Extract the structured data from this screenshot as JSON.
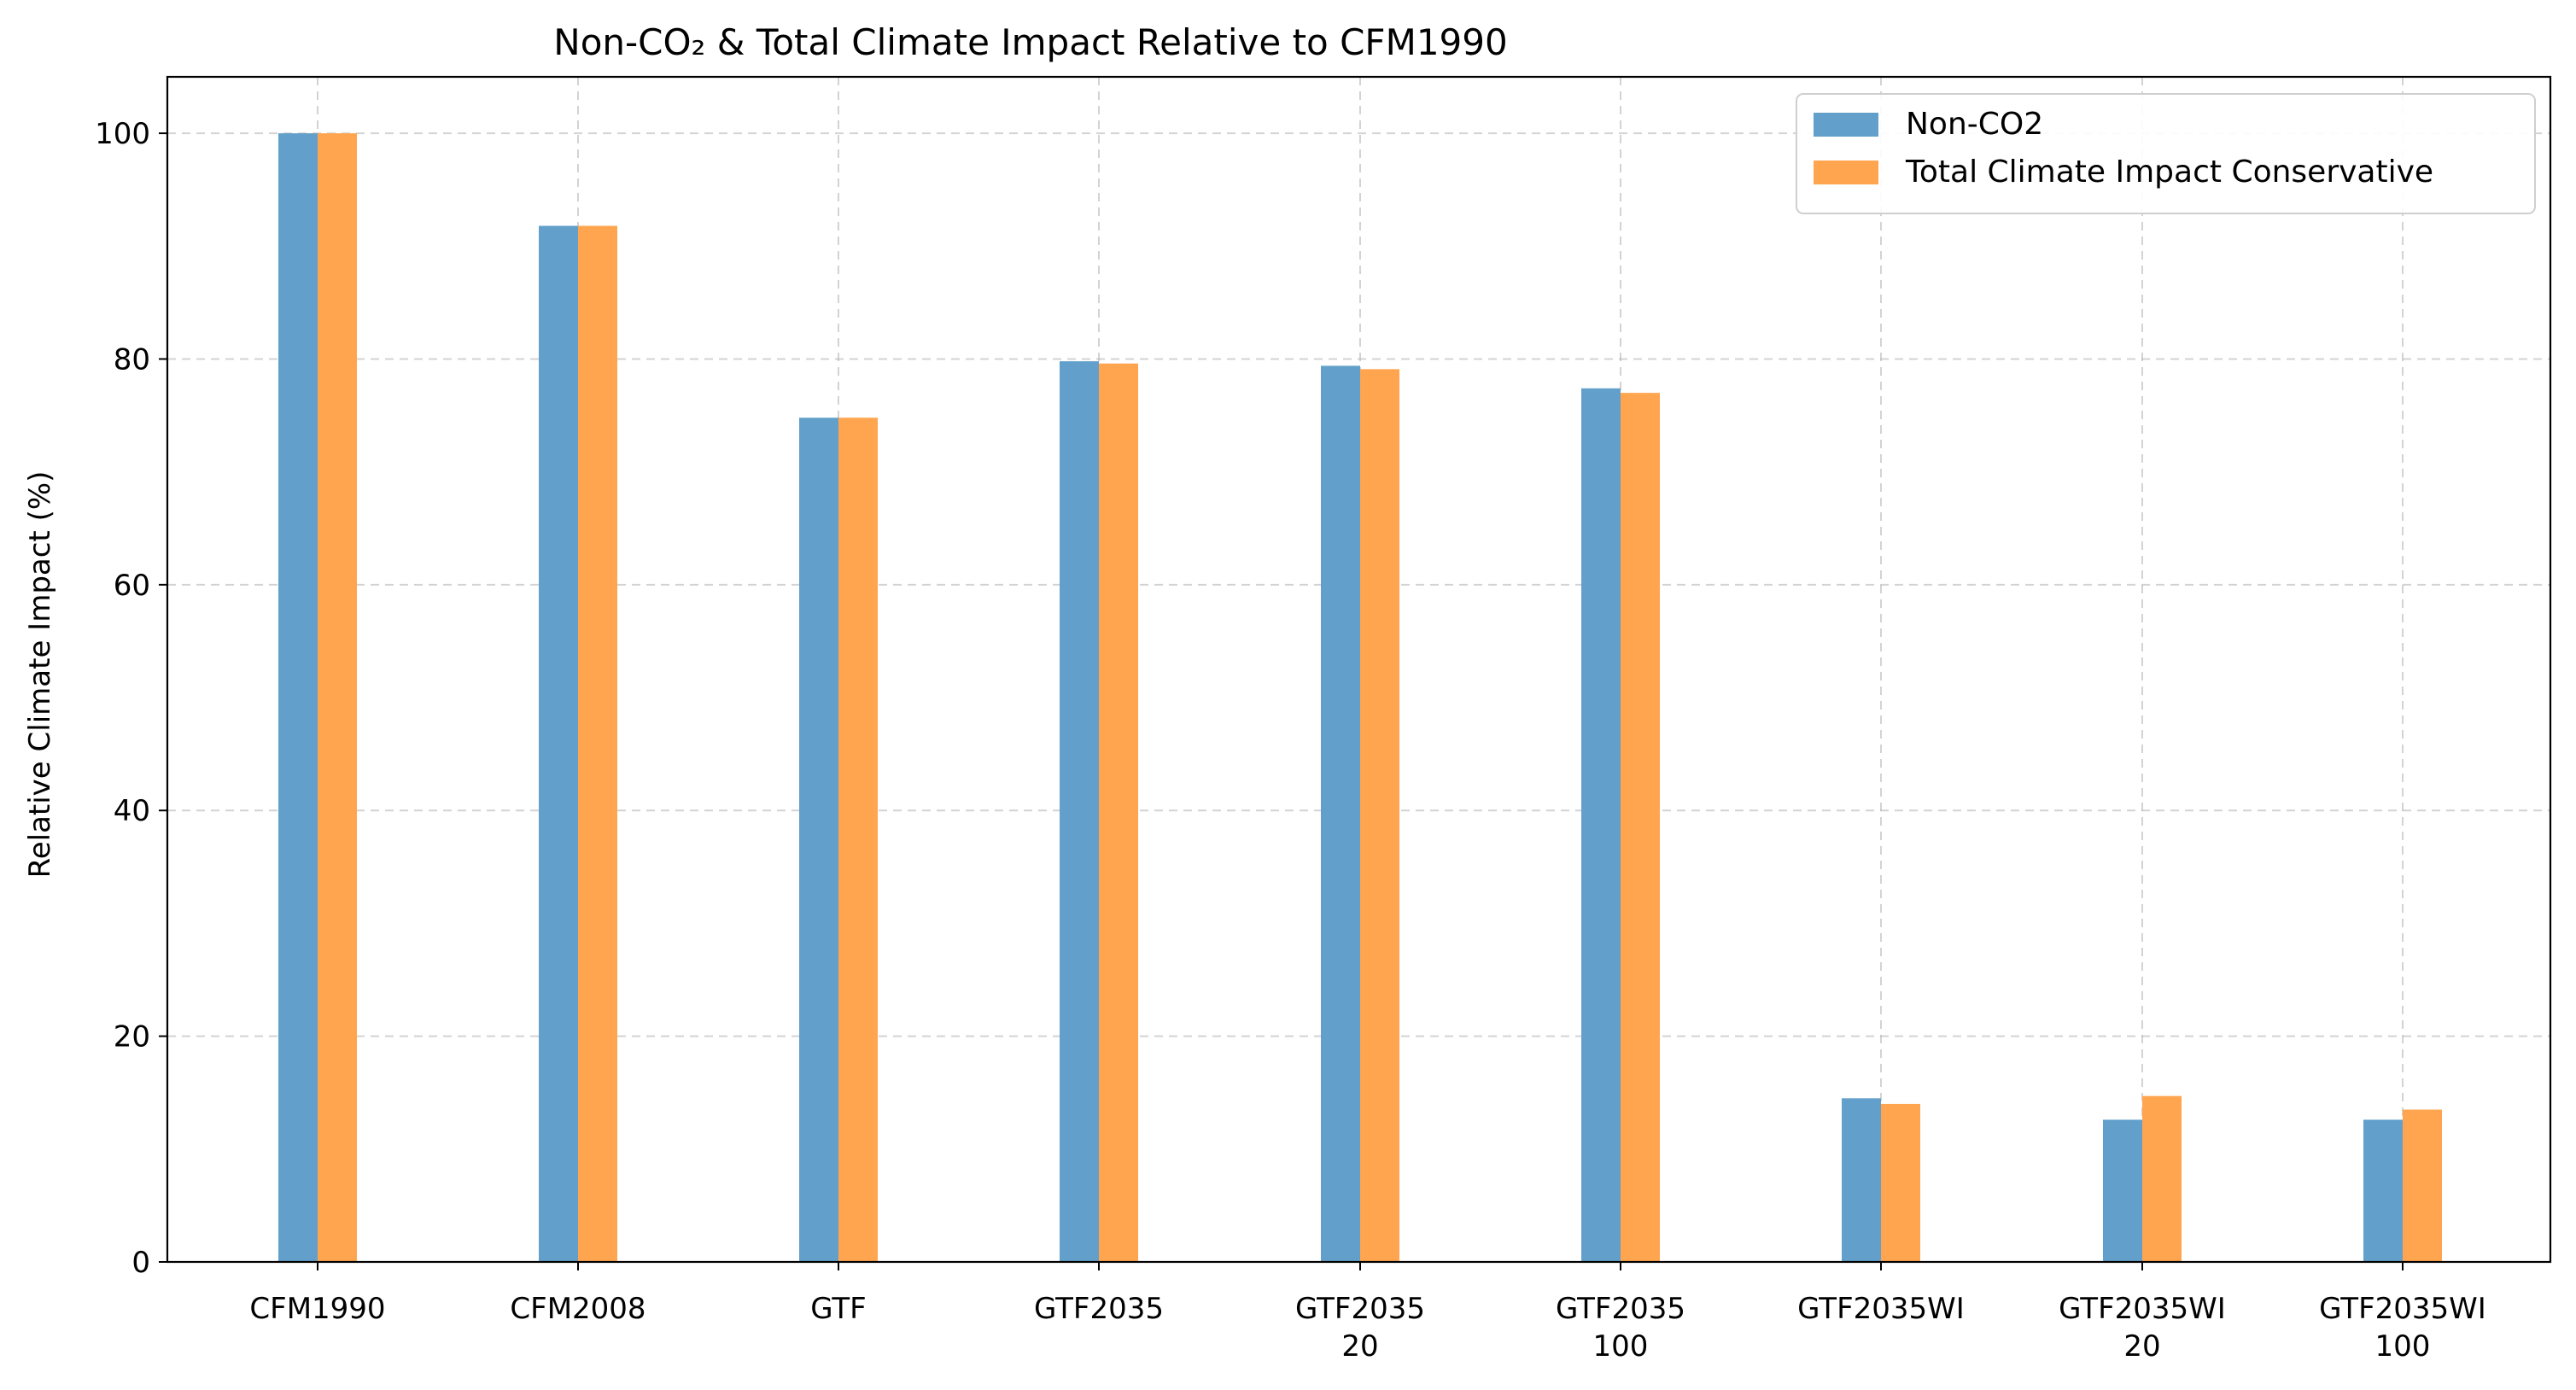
{
  "chart_data": {
    "type": "bar",
    "title": "Non-CO₂ & Total Climate Impact Relative to CFM1990",
    "xlabel": "",
    "ylabel": "Relative Climate Impact (%)",
    "categories": [
      [
        "CFM1990"
      ],
      [
        "CFM2008"
      ],
      [
        "GTF"
      ],
      [
        "GTF2035"
      ],
      [
        "GTF2035",
        "20"
      ],
      [
        "GTF2035",
        "100"
      ],
      [
        "GTF2035WI"
      ],
      [
        "GTF2035WI",
        "20"
      ],
      [
        "GTF2035WI",
        "100"
      ]
    ],
    "series": [
      {
        "name": "Non-CO2",
        "color": "#62a0cb",
        "values": [
          100,
          91.8,
          74.8,
          79.8,
          79.4,
          77.4,
          14.5,
          12.6,
          12.6
        ]
      },
      {
        "name": "Total Climate Impact Conservative",
        "color": "#ffa54f",
        "values": [
          100,
          91.8,
          74.8,
          79.6,
          79.1,
          77.0,
          14.0,
          14.7,
          13.5
        ]
      }
    ],
    "ylim": [
      0,
      105
    ],
    "yticks": [
      0,
      20,
      40,
      60,
      80,
      100
    ],
    "grid": true,
    "legend_position": "top-right"
  }
}
